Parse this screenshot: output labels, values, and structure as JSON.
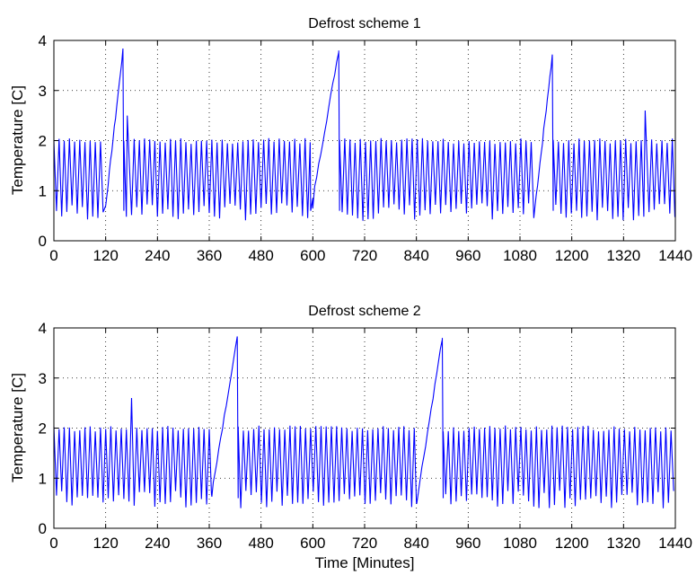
{
  "chart_data": [
    {
      "type": "line",
      "title": "Defrost scheme 1",
      "xlabel": "",
      "ylabel": "Temperature [C]",
      "xlim": [
        0,
        1440
      ],
      "ylim": [
        0,
        4
      ],
      "xticks": [
        "0",
        "120",
        "240",
        "360",
        "480",
        "600",
        "720",
        "840",
        "960",
        "1080",
        "1200",
        "1320",
        "1440"
      ],
      "yticks": [
        "0",
        "1",
        "2",
        "3",
        "4"
      ],
      "grid": true,
      "color": "#0000ff",
      "oscillation": {
        "low": 0.4,
        "high": 2.05,
        "period_minutes": 12
      },
      "defrost_ramps": [
        {
          "start": 120,
          "end": 160,
          "from": 0.7,
          "to": 3.8
        },
        {
          "start": 595,
          "end": 660,
          "from": 0.6,
          "to": 3.8
        },
        {
          "start": 1115,
          "end": 1155,
          "from": 0.7,
          "to": 3.7
        }
      ],
      "spikes": [
        {
          "x": 170,
          "y": 2.5
        },
        {
          "x": 1370,
          "y": 2.6
        }
      ],
      "series": [
        {
          "name": "",
          "x": [
            0,
            120,
            160,
            595,
            660,
            1115,
            1155,
            1370,
            1440
          ],
          "values": [
            1.9,
            0.7,
            3.8,
            0.6,
            3.8,
            0.7,
            3.7,
            2.6,
            1.0
          ]
        }
      ]
    },
    {
      "type": "line",
      "title": "Defrost scheme 2",
      "xlabel": "Time [Minutes]",
      "ylabel": "Temperature [C]",
      "xlim": [
        0,
        1440
      ],
      "ylim": [
        0,
        4
      ],
      "xticks": [
        "0",
        "120",
        "240",
        "360",
        "480",
        "600",
        "720",
        "840",
        "960",
        "1080",
        "1200",
        "1320",
        "1440"
      ],
      "yticks": [
        "0",
        "1",
        "2",
        "3",
        "4"
      ],
      "grid": true,
      "color": "#0000ff",
      "oscillation": {
        "low": 0.4,
        "high": 2.05,
        "period_minutes": 12
      },
      "defrost_ramps": [
        {
          "start": 365,
          "end": 425,
          "from": 0.7,
          "to": 3.8
        },
        {
          "start": 840,
          "end": 900,
          "from": 0.5,
          "to": 3.8
        }
      ],
      "spikes": [
        {
          "x": 180,
          "y": 2.6
        }
      ],
      "series": [
        {
          "name": "",
          "x": [
            0,
            180,
            365,
            425,
            840,
            900,
            1440
          ],
          "values": [
            1.9,
            2.6,
            0.7,
            3.8,
            0.5,
            3.8,
            1.0
          ]
        }
      ]
    }
  ]
}
